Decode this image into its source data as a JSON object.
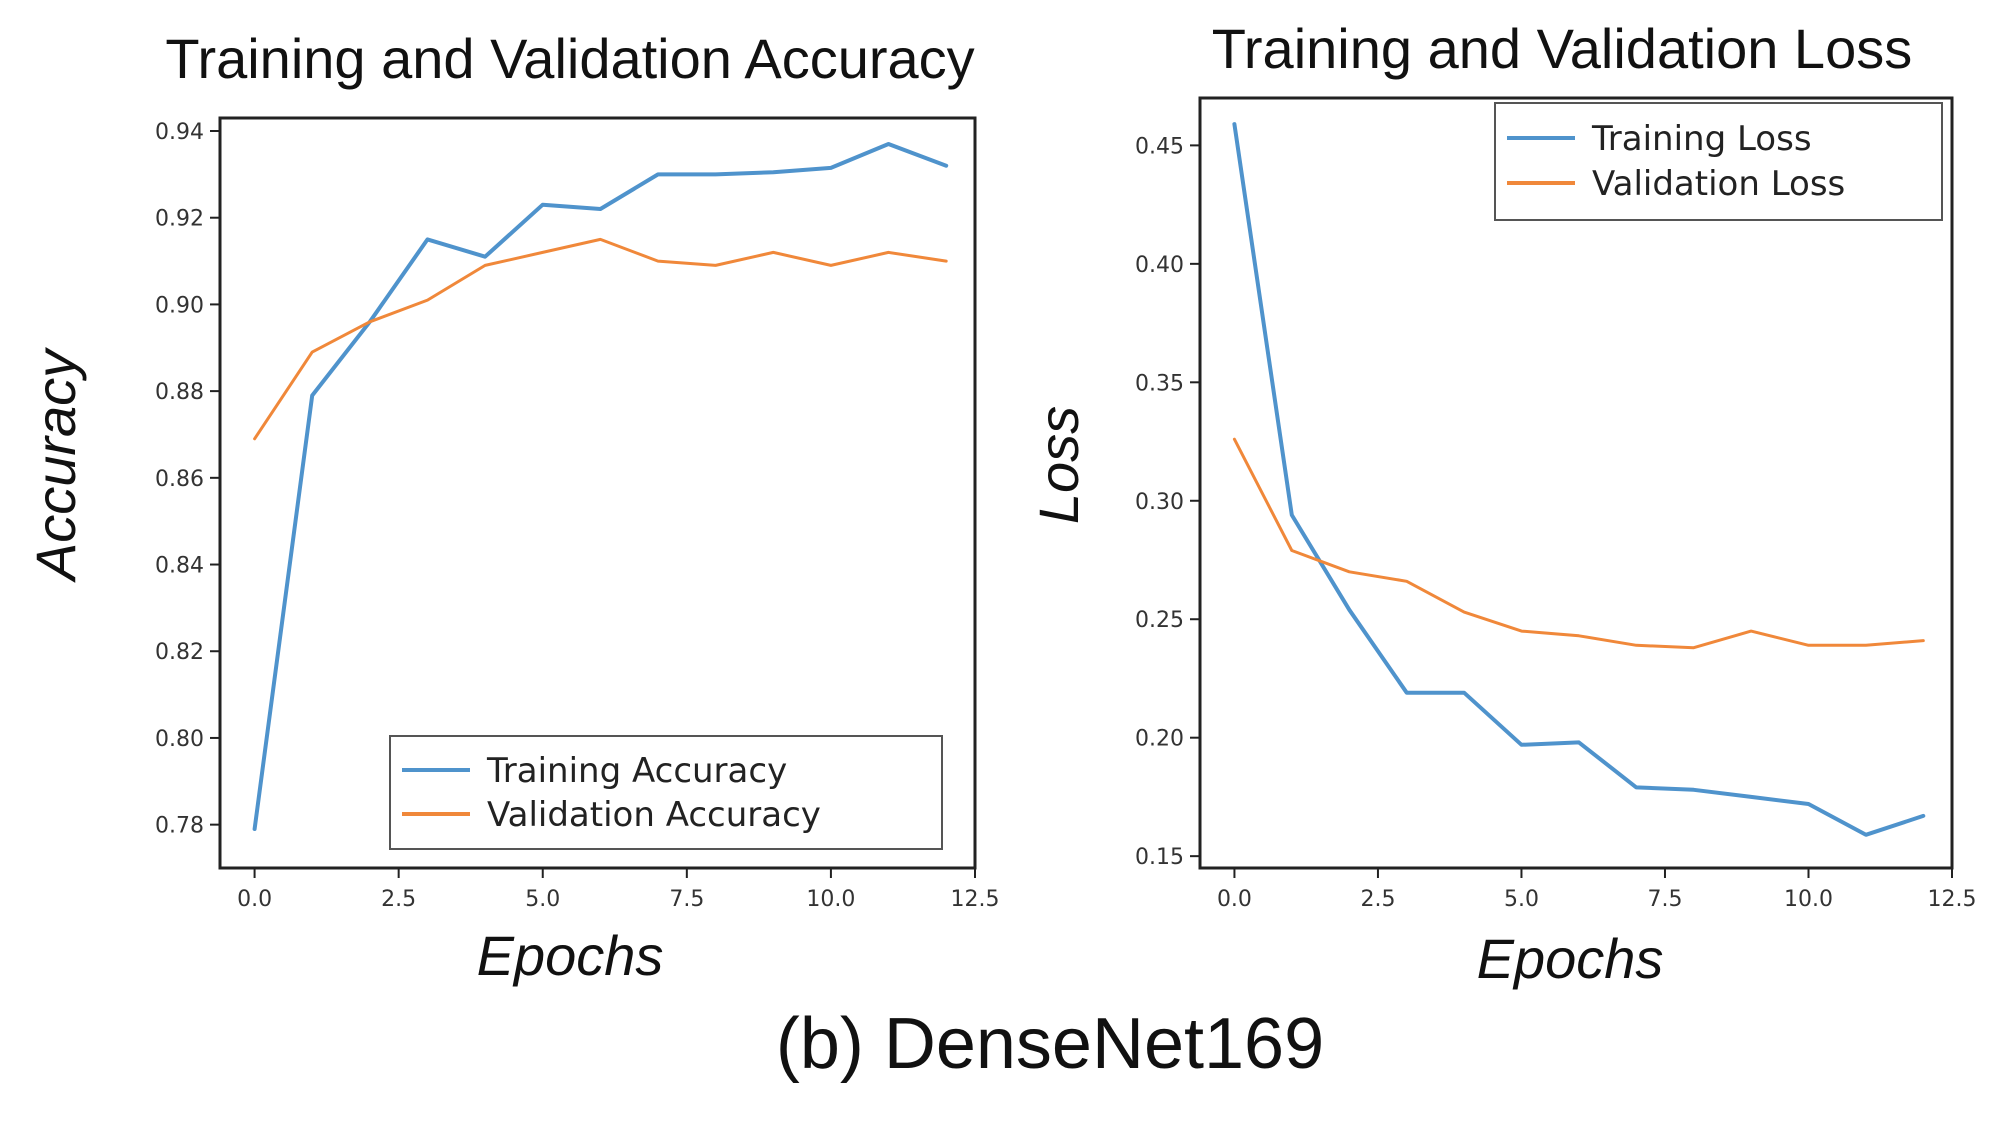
{
  "caption": "(b) DenseNet169",
  "colors": {
    "training": "#4f93cc",
    "validation": "#f0883a",
    "axis": "#222222"
  },
  "chart_data": [
    {
      "type": "line",
      "title": "Training and Validation Accuracy",
      "xlabel": "Epochs",
      "ylabel": "Accuracy",
      "xlim": [
        -0.6,
        12.5
      ],
      "ylim": [
        0.77,
        0.943
      ],
      "x_ticks": [
        0,
        2.5,
        5,
        7.5,
        10,
        12.5
      ],
      "x_tick_labels": [
        "0.0",
        "2.5",
        "5.0",
        "7.5",
        "10.0",
        "12.5"
      ],
      "y_ticks": [
        0.78,
        0.8,
        0.82,
        0.84,
        0.86,
        0.88,
        0.9,
        0.92,
        0.94
      ],
      "y_tick_labels": [
        "0.78",
        "0.80",
        "0.82",
        "0.84",
        "0.86",
        "0.88",
        "0.90",
        "0.92",
        "0.94"
      ],
      "legend_position": "bottom-right",
      "x": [
        0,
        1,
        2,
        3,
        4,
        5,
        6,
        7,
        8,
        9,
        10,
        11,
        12
      ],
      "series": [
        {
          "name": "Training Accuracy",
          "color": "#4f93cc",
          "values": [
            0.779,
            0.879,
            0.896,
            0.915,
            0.911,
            0.923,
            0.922,
            0.93,
            0.93,
            0.9305,
            0.9315,
            0.937,
            0.932
          ]
        },
        {
          "name": "Validation Accuracy",
          "color": "#f0883a",
          "values": [
            0.869,
            0.889,
            0.896,
            0.901,
            0.909,
            0.912,
            0.915,
            0.91,
            0.909,
            0.912,
            0.909,
            0.912,
            0.91
          ]
        }
      ]
    },
    {
      "type": "line",
      "title": "Training and Validation Loss",
      "xlabel": "Epochs",
      "ylabel": "Loss",
      "xlim": [
        -0.6,
        12.5
      ],
      "ylim": [
        0.145,
        0.47
      ],
      "x_ticks": [
        0,
        2.5,
        5,
        7.5,
        10,
        12.5
      ],
      "x_tick_labels": [
        "0.0",
        "2.5",
        "5.0",
        "7.5",
        "10.0",
        "12.5"
      ],
      "y_ticks": [
        0.15,
        0.2,
        0.25,
        0.3,
        0.35,
        0.4,
        0.45
      ],
      "y_tick_labels": [
        "0.15",
        "0.20",
        "0.25",
        "0.30",
        "0.35",
        "0.40",
        "0.45"
      ],
      "legend_position": "top-right",
      "x": [
        0,
        1,
        2,
        3,
        4,
        5,
        6,
        7,
        8,
        9,
        10,
        11,
        12
      ],
      "series": [
        {
          "name": "Training Loss",
          "color": "#4f93cc",
          "values": [
            0.459,
            0.294,
            0.254,
            0.219,
            0.219,
            0.197,
            0.198,
            0.179,
            0.178,
            0.175,
            0.172,
            0.159,
            0.167
          ]
        },
        {
          "name": "Validation Loss",
          "color": "#f0883a",
          "values": [
            0.326,
            0.279,
            0.27,
            0.266,
            0.253,
            0.245,
            0.243,
            0.239,
            0.238,
            0.245,
            0.239,
            0.239,
            0.241
          ]
        }
      ]
    }
  ]
}
